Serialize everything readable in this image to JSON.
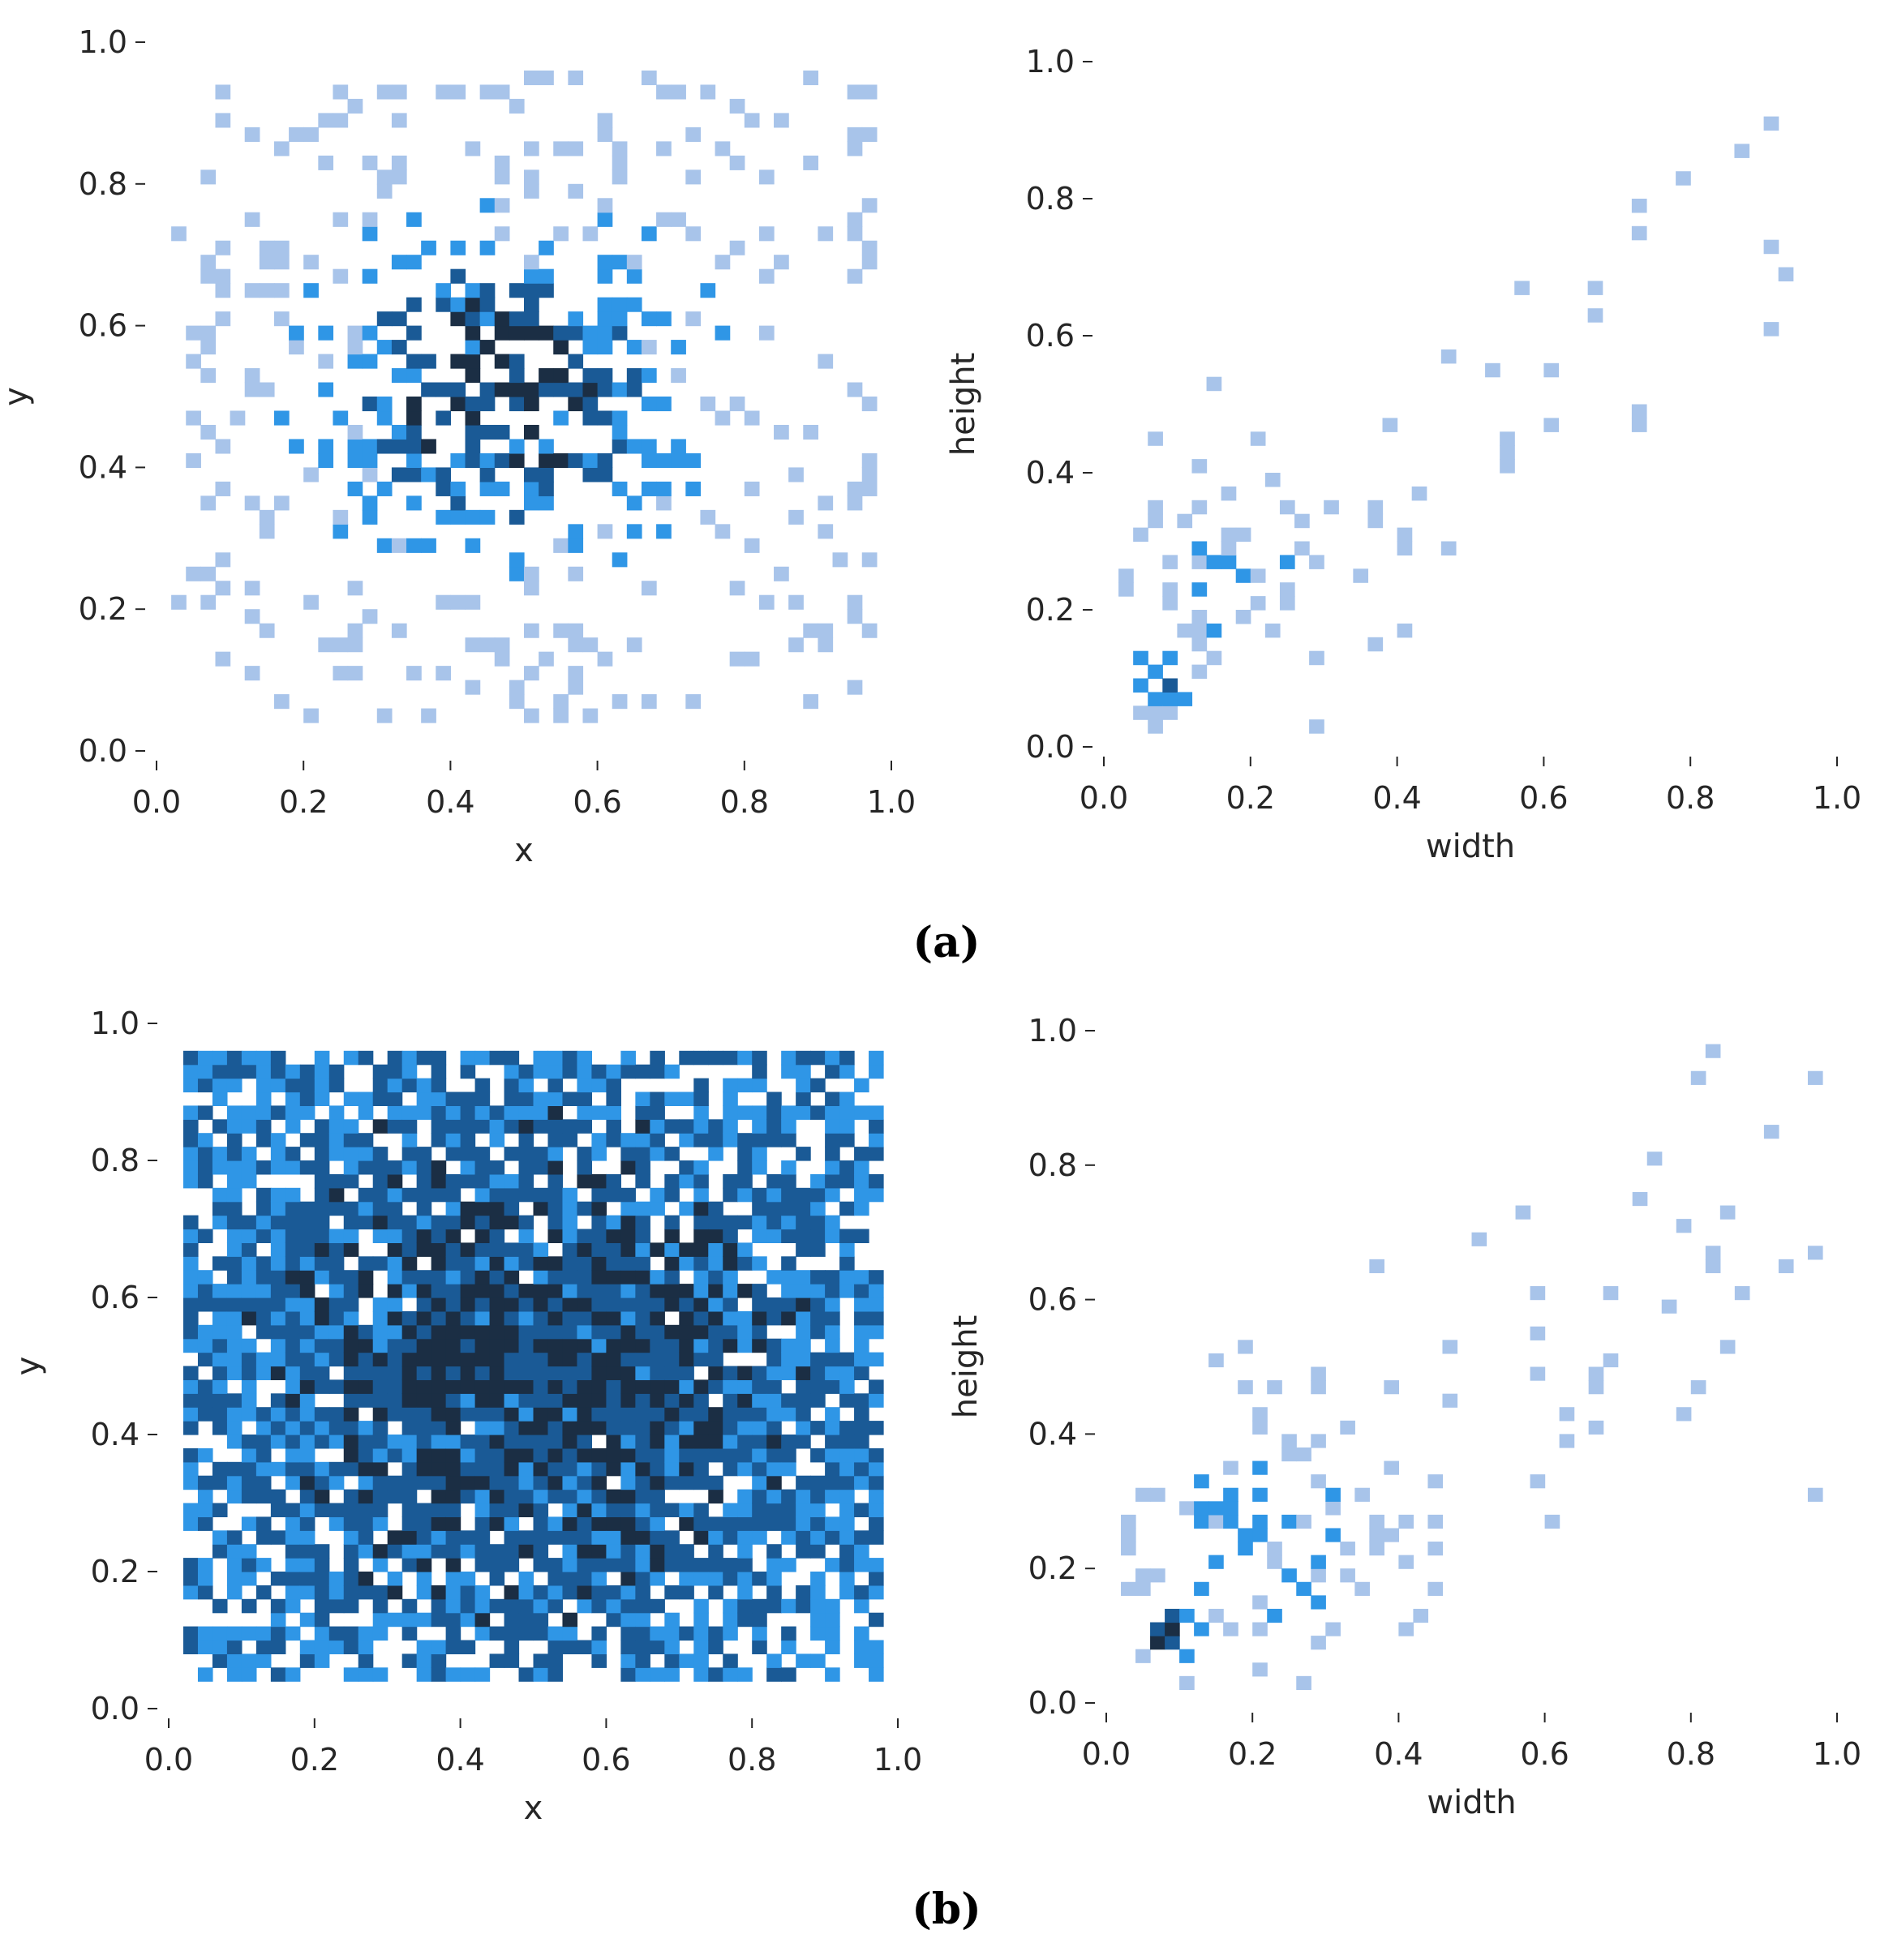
{
  "figure": {
    "captions": [
      "(a)",
      "(b)"
    ]
  },
  "colors": {
    "bin_light": "#a8c4ea",
    "bin_medium": "#2f96e6",
    "bin_dark": "#1a5a96",
    "bin_darkest": "#1b2e44",
    "axis_text": "#262626"
  },
  "chart_data": [
    {
      "type": "heatmap",
      "panel": "a-left",
      "xlabel": "x",
      "ylabel": "y",
      "xlim": [
        0,
        1
      ],
      "ylim": [
        0,
        1
      ],
      "bins": 50,
      "xticks": [
        "0.0",
        "0.2",
        "0.4",
        "0.6",
        "0.8",
        "1.0"
      ],
      "yticks": [
        "0.0",
        "0.2",
        "0.4",
        "0.6",
        "0.8",
        "1.0"
      ],
      "grid": false,
      "x_range": [
        0.02,
        0.97
      ],
      "y_range": [
        0.04,
        0.96
      ],
      "peak": [
        0.47,
        0.5
      ],
      "density_peak_level": 1.0,
      "description_of_values": "2D histogram of object center positions; sparse, densest near (0.47, 0.50)"
    },
    {
      "type": "heatmap",
      "panel": "a-right",
      "xlabel": "width",
      "ylabel": "height",
      "xlim": [
        0,
        1
      ],
      "ylim": [
        0,
        1
      ],
      "bins": 50,
      "xticks": [
        "0.0",
        "0.2",
        "0.4",
        "0.6",
        "0.8",
        "1.0"
      ],
      "yticks": [
        "0.0",
        "0.2",
        "0.4",
        "0.6",
        "0.8",
        "1.0"
      ],
      "grid": false,
      "x_range": [
        0.03,
        0.98
      ],
      "y_range": [
        0.03,
        0.98
      ],
      "peak": [
        0.08,
        0.1
      ],
      "description_of_values": "2D histogram of object width vs height; dense cluster at small sizes near (0.08, 0.10), sparse along diagonal"
    },
    {
      "type": "heatmap",
      "panel": "b-left",
      "xlabel": "x",
      "ylabel": "y",
      "xlim": [
        0,
        1
      ],
      "ylim": [
        0,
        1
      ],
      "bins": 50,
      "xticks": [
        "0.0",
        "0.2",
        "0.4",
        "0.6",
        "0.8",
        "1.0"
      ],
      "yticks": [
        "0.0",
        "0.2",
        "0.4",
        "0.6",
        "0.8",
        "1.0"
      ],
      "grid": false,
      "x_range": [
        0.03,
        0.97
      ],
      "y_range": [
        0.04,
        0.96
      ],
      "peak": [
        0.5,
        0.5
      ],
      "description_of_values": "2D histogram of object center positions after augmentation; densely filled square 0.03-0.97"
    },
    {
      "type": "heatmap",
      "panel": "b-right",
      "xlabel": "width",
      "ylabel": "height",
      "xlim": [
        0,
        1
      ],
      "ylim": [
        0,
        1
      ],
      "bins": 50,
      "xticks": [
        "0.0",
        "0.2",
        "0.4",
        "0.6",
        "0.8",
        "1.0"
      ],
      "yticks": [
        "0.0",
        "0.2",
        "0.4",
        "0.6",
        "0.8",
        "1.0"
      ],
      "grid": false,
      "x_range": [
        0.03,
        0.98
      ],
      "y_range": [
        0.03,
        0.98
      ],
      "peak": [
        0.08,
        0.1
      ],
      "description_of_values": "2D histogram of object width vs height; dense cluster near (0.08, 0.10), sparse spread along diagonal"
    }
  ]
}
